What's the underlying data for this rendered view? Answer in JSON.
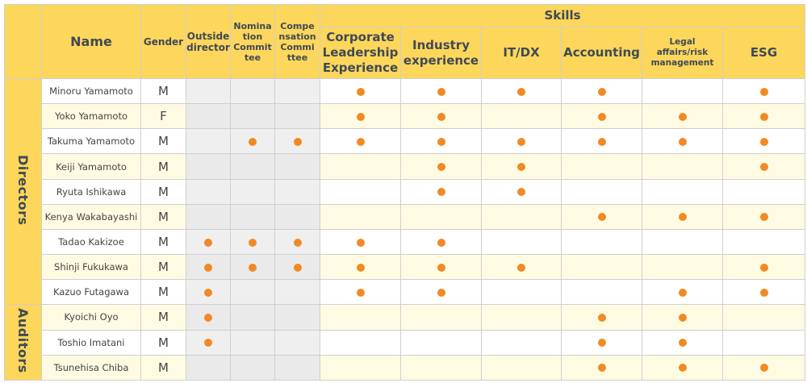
{
  "headers": {
    "name": "Name",
    "gender": "Gender",
    "outside": [
      "Outside",
      "director"
    ],
    "nomination": [
      "Nomina",
      "tion",
      "Commit",
      "tee"
    ],
    "compensation": [
      "Compe",
      "nsation",
      "Commi",
      "ttee"
    ],
    "skills": "Skills",
    "skill_cols": [
      [
        "Corporate",
        "Leadership",
        "Experience"
      ],
      [
        "Industry",
        "experience"
      ],
      [
        "IT/DX"
      ],
      [
        "Accounting"
      ],
      [
        "Legal",
        "affairs/risk",
        "management"
      ],
      [
        "ESG"
      ]
    ]
  },
  "groups": [
    {
      "label": "Directors",
      "members": [
        {
          "name": "Minoru Yamamoto",
          "gender": "M",
          "marks": [
            0,
            0,
            0,
            1,
            1,
            1,
            1,
            0,
            1
          ]
        },
        {
          "name": "Yoko Yamamoto",
          "gender": "F",
          "marks": [
            0,
            0,
            0,
            1,
            1,
            0,
            1,
            1,
            1
          ]
        },
        {
          "name": "Takuma Yamamoto",
          "gender": "M",
          "marks": [
            0,
            1,
            1,
            1,
            1,
            1,
            1,
            1,
            1
          ]
        },
        {
          "name": "Keiji Yamamoto",
          "gender": "M",
          "marks": [
            0,
            0,
            0,
            0,
            1,
            1,
            0,
            0,
            1
          ]
        },
        {
          "name": "Ryuta Ishikawa",
          "gender": "M",
          "marks": [
            0,
            0,
            0,
            0,
            1,
            1,
            0,
            0,
            0
          ]
        },
        {
          "name": "Kenya Wakabayashi",
          "gender": "M",
          "marks": [
            0,
            0,
            0,
            0,
            0,
            0,
            1,
            1,
            1
          ]
        },
        {
          "name": "Tadao Kakizoe",
          "gender": "M",
          "marks": [
            1,
            1,
            1,
            1,
            1,
            0,
            0,
            0,
            0
          ]
        },
        {
          "name": "Shinji Fukukawa",
          "gender": "M",
          "marks": [
            1,
            1,
            1,
            1,
            1,
            1,
            0,
            0,
            1
          ]
        },
        {
          "name": "Kazuo Futagawa",
          "gender": "M",
          "marks": [
            1,
            0,
            0,
            1,
            1,
            0,
            0,
            1,
            1
          ]
        }
      ]
    },
    {
      "label": "Auditors",
      "members": [
        {
          "name": "Kyoichi Oyo",
          "gender": "M",
          "marks": [
            1,
            0,
            0,
            0,
            0,
            0,
            1,
            1,
            0
          ]
        },
        {
          "name": "Toshio Imatani",
          "gender": "M",
          "marks": [
            1,
            0,
            0,
            0,
            0,
            0,
            1,
            1,
            0
          ]
        },
        {
          "name": "Tsunehisa Chiba",
          "gender": "M",
          "marks": [
            0,
            0,
            0,
            0,
            0,
            0,
            1,
            1,
            1
          ]
        }
      ]
    }
  ],
  "colors": {
    "header": "#fdd65c",
    "mark": "#f08a24",
    "alt_row": "#fffbe2"
  }
}
